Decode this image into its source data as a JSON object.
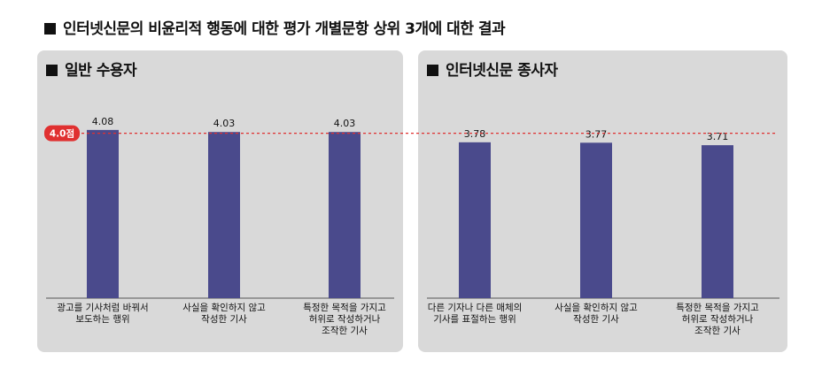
{
  "title": "인터넷신문의 비윤리적 행동에 대한 평가 개별문항 상위 3개에 대한 결과",
  "colors": {
    "bar": "#4a4a8c",
    "panel_bg": "#d9d9d9",
    "reference_line": "#e03030",
    "reference_badge": "#e03030"
  },
  "chart_data": [
    {
      "type": "bar",
      "title": "일반 수용자",
      "categories": [
        "광고를 기사처럼 바꿔서\n보도하는 행위",
        "사실을 확인하지 않고\n작성한 기사",
        "특정한 목적을 가지고\n허위로 작성하거나\n조작한 기사"
      ],
      "values": [
        4.08,
        4.03,
        4.03
      ],
      "value_labels": [
        "4.08",
        "4.03",
        "4.03"
      ],
      "ylim": [
        0,
        4.6
      ],
      "reference_line": {
        "value": 4.0,
        "label": "4.0점"
      }
    },
    {
      "type": "bar",
      "title": "인터넷신문 종사자",
      "categories": [
        "다른 기자나 다른 매체의\n기사를 표절하는 행위",
        "사실을 확인하지 않고\n작성한 기사",
        "특정한 목적을 가지고\n허위로 작성하거나\n조작한 기사"
      ],
      "values": [
        3.78,
        3.77,
        3.71
      ],
      "value_labels": [
        "3.78",
        "3.77",
        "3.71"
      ],
      "ylim": [
        0,
        4.6
      ],
      "reference_line": {
        "value": 4.0,
        "label": "4.0점"
      }
    }
  ]
}
